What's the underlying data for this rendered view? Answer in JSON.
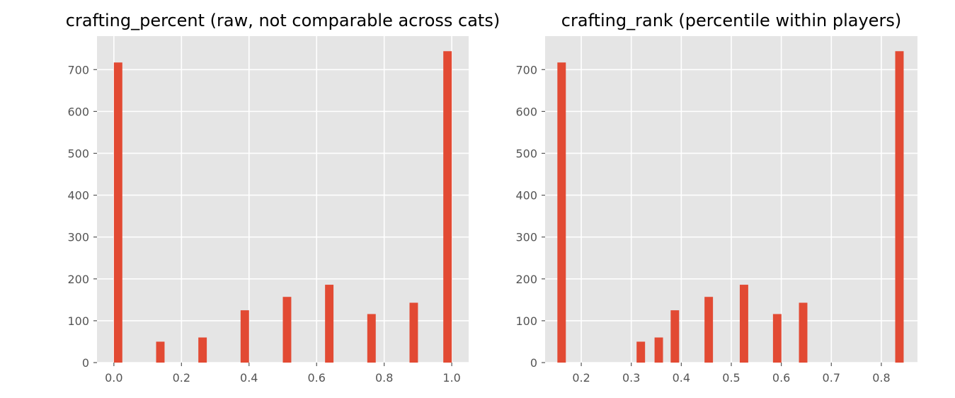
{
  "chart_data": [
    {
      "type": "bar",
      "title": "crafting_percent (raw, not comparable across cats)",
      "xlabel": "",
      "ylabel": "",
      "xlim": [
        -0.05,
        1.05
      ],
      "ylim": [
        0,
        780
      ],
      "xticks": [
        0.0,
        0.2,
        0.4,
        0.6,
        0.8,
        1.0
      ],
      "xtick_labels": [
        "0.0",
        "0.2",
        "0.4",
        "0.6",
        "0.8",
        "1.0"
      ],
      "yticks": [
        0,
        100,
        200,
        300,
        400,
        500,
        600,
        700
      ],
      "ytick_labels": [
        "0",
        "100",
        "200",
        "300",
        "400",
        "500",
        "600",
        "700"
      ],
      "grid": true,
      "bar_color": "#E24A33",
      "background_color": "#E5E5E5",
      "bar_width": 0.025,
      "bars": [
        {
          "x": 0.0125,
          "value": 717
        },
        {
          "x": 0.1375,
          "value": 50
        },
        {
          "x": 0.2625,
          "value": 60
        },
        {
          "x": 0.3875,
          "value": 125
        },
        {
          "x": 0.5125,
          "value": 157
        },
        {
          "x": 0.6375,
          "value": 186
        },
        {
          "x": 0.7625,
          "value": 116
        },
        {
          "x": 0.8875,
          "value": 143
        },
        {
          "x": 0.9875,
          "value": 744
        }
      ]
    },
    {
      "type": "bar",
      "title": "crafting_rank (percentile within players)",
      "xlabel": "",
      "ylabel": "",
      "xlim": [
        0.1277,
        0.8723
      ],
      "ylim": [
        0,
        780
      ],
      "xticks": [
        0.2,
        0.3,
        0.4,
        0.5,
        0.6,
        0.7,
        0.8
      ],
      "xtick_labels": [
        "0.2",
        "0.3",
        "0.4",
        "0.5",
        "0.6",
        "0.7",
        "0.8"
      ],
      "yticks": [
        0,
        100,
        200,
        300,
        400,
        500,
        600,
        700
      ],
      "ytick_labels": [
        "0",
        "100",
        "200",
        "300",
        "400",
        "500",
        "600",
        "700"
      ],
      "grid": true,
      "bar_color": "#E24A33",
      "background_color": "#E5E5E5",
      "bar_width": 0.0169,
      "bars": [
        {
          "x": 0.1607,
          "value": 717
        },
        {
          "x": 0.3191,
          "value": 50
        },
        {
          "x": 0.355,
          "value": 60
        },
        {
          "x": 0.3872,
          "value": 125
        },
        {
          "x": 0.4549,
          "value": 157
        },
        {
          "x": 0.5254,
          "value": 186
        },
        {
          "x": 0.5918,
          "value": 116
        },
        {
          "x": 0.6437,
          "value": 143
        },
        {
          "x": 0.8362,
          "value": 744
        }
      ]
    }
  ]
}
